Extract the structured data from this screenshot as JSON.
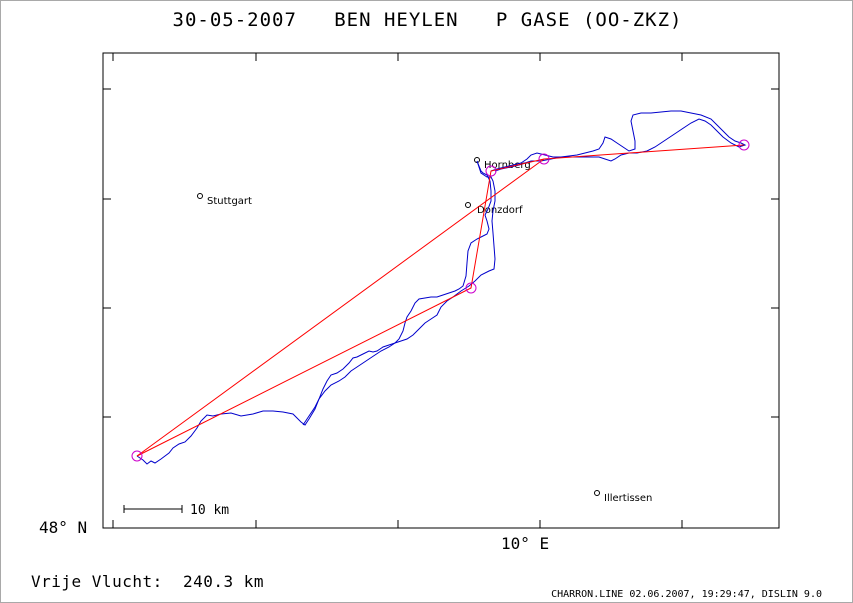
{
  "title": "30-05-2007   BEN HEYLEN   P GASE (OO-ZKZ)",
  "axes": {
    "y_label": "48° N",
    "x_label": "10° E"
  },
  "scale_bar": {
    "label": "10 km"
  },
  "towns": [
    {
      "name": "Stuttgart"
    },
    {
      "name": "Hornberg"
    },
    {
      "name": "Donzdorf"
    },
    {
      "name": "Illertissen"
    }
  ],
  "distance": {
    "label": "Vrije Vlucht:",
    "value": "240.3 km"
  },
  "footer": "CHARRON.LINE 02.06.2007, 19:29:47, DISLIN 9.0",
  "colors": {
    "track": "#0000cc",
    "task_lines": "#ff0000",
    "turnpoints": "#cc00cc",
    "frame": "#000000"
  }
}
